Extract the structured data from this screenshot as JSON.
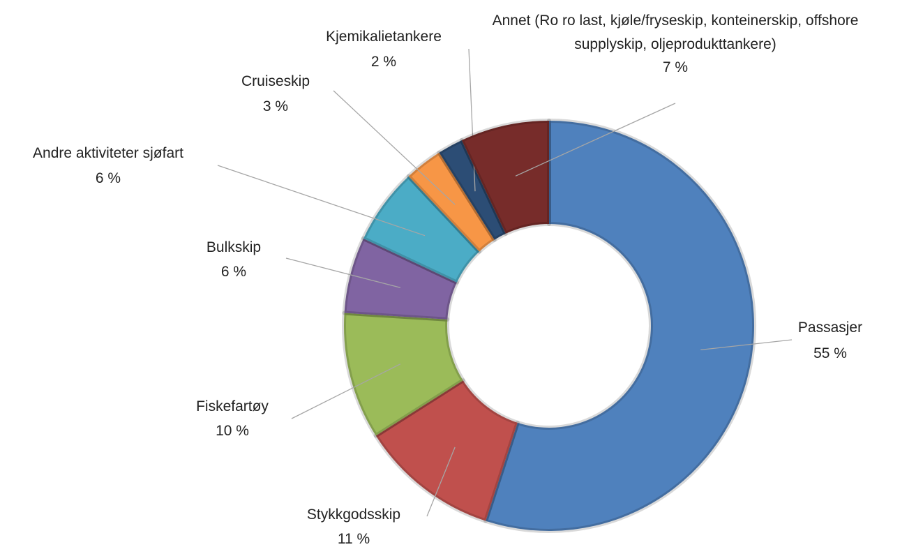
{
  "chart_data": {
    "type": "donut",
    "categories": [
      "Passasjer",
      "Stykkgodsskip",
      "Fiskefartøy",
      "Bulkskip",
      "Andre aktiviteter sjøfart",
      "Cruiseskip",
      "Kjemikalietankere",
      "Annet (Ro ro last, kjøle/fryseskip, konteinerskip, offshore supplyskip, oljeprodukttankere)"
    ],
    "values": [
      55,
      11,
      10,
      6,
      6,
      3,
      2,
      7
    ],
    "value_labels": [
      "55 %",
      "11 %",
      "10 %",
      "6 %",
      "6 %",
      "3 %",
      "2 %",
      "7 %"
    ],
    "colors": [
      "#4f81bd",
      "#c0504d",
      "#9bbb59",
      "#8064a2",
      "#4bacc6",
      "#f79646",
      "#2c4d75",
      "#772c2a"
    ]
  }
}
